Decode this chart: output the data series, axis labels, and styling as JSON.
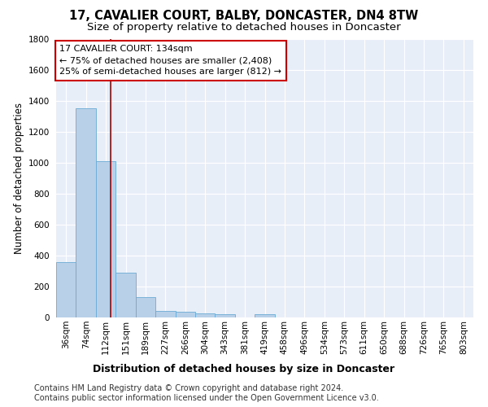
{
  "title": "17, CAVALIER COURT, BALBY, DONCASTER, DN4 8TW",
  "subtitle": "Size of property relative to detached houses in Doncaster",
  "xlabel": "Distribution of detached houses by size in Doncaster",
  "ylabel": "Number of detached properties",
  "bar_labels": [
    "36sqm",
    "74sqm",
    "112sqm",
    "151sqm",
    "189sqm",
    "227sqm",
    "266sqm",
    "304sqm",
    "343sqm",
    "381sqm",
    "419sqm",
    "458sqm",
    "496sqm",
    "534sqm",
    "573sqm",
    "611sqm",
    "650sqm",
    "688sqm",
    "726sqm",
    "765sqm",
    "803sqm"
  ],
  "bar_values": [
    355,
    1350,
    1010,
    290,
    130,
    43,
    35,
    25,
    20,
    0,
    20,
    0,
    0,
    0,
    0,
    0,
    0,
    0,
    0,
    0,
    0
  ],
  "bar_color": "#b8d0e8",
  "bar_edgecolor": "#6aaad4",
  "vline_x": 2.75,
  "vline_color": "#aa0000",
  "annotation_text": "17 CAVALIER COURT: 134sqm\n← 75% of detached houses are smaller (2,408)\n25% of semi-detached houses are larger (812) →",
  "annotation_box_color": "#ffffff",
  "annotation_box_edgecolor": "#cc0000",
  "ylim": [
    0,
    1800
  ],
  "yticks": [
    0,
    200,
    400,
    600,
    800,
    1000,
    1200,
    1400,
    1600,
    1800
  ],
  "bg_color": "#e8eef8",
  "plot_bg_color": "#e8eef8",
  "footer_text": "Contains HM Land Registry data © Crown copyright and database right 2024.\nContains public sector information licensed under the Open Government Licence v3.0.",
  "title_fontsize": 10.5,
  "subtitle_fontsize": 9.5,
  "xlabel_fontsize": 9,
  "ylabel_fontsize": 8.5,
  "tick_fontsize": 7.5,
  "annotation_fontsize": 8,
  "footer_fontsize": 7
}
